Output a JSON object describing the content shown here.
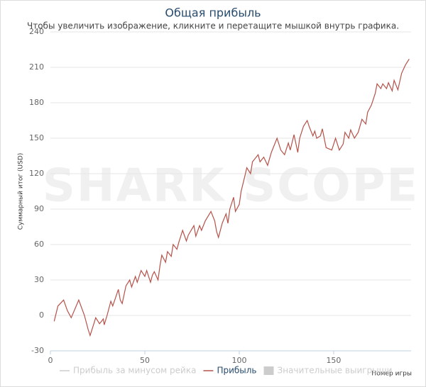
{
  "chart_data": {
    "type": "line",
    "title": "Общая прибыль",
    "subtitle": "Чтобы увеличить изображение, кликните и перетащите мышкой внутрь графика.",
    "watermark": "SHARK SCOPE",
    "ylabel": "Суммарный итог (USD)",
    "xlabel": "Номер игры",
    "x": [
      2,
      4,
      7,
      9,
      11,
      15,
      18,
      20,
      21,
      23,
      24,
      26,
      28,
      28.5,
      30,
      32,
      33,
      36,
      37,
      38,
      40,
      42,
      43,
      45,
      46,
      48,
      50,
      51,
      53,
      54,
      55,
      57,
      58,
      59,
      61,
      62,
      64,
      65,
      67,
      68,
      70,
      72,
      73,
      76,
      77,
      79,
      80,
      82,
      85,
      87,
      88,
      89,
      91,
      93,
      94,
      95,
      97,
      98,
      100,
      101,
      103,
      104,
      106,
      107,
      110,
      111,
      113,
      115,
      117,
      120,
      122,
      124,
      126,
      127,
      129,
      131,
      132,
      134,
      136,
      137,
      139,
      140,
      141,
      143,
      144,
      146,
      149,
      150,
      151,
      153,
      155,
      156,
      158,
      159,
      161,
      163,
      165,
      167,
      168,
      170,
      172,
      173,
      175,
      176,
      178,
      179,
      181,
      182,
      184,
      186,
      188,
      190
    ],
    "series": [
      {
        "name": "Прибыль",
        "color": "#b5524a",
        "values": [
          -5,
          8,
          13,
          4,
          -2,
          13,
          0,
          -12,
          -17,
          -7,
          -2,
          -7,
          -3,
          -8,
          0,
          12,
          8,
          22,
          13,
          10,
          25,
          30,
          24,
          33,
          28,
          38,
          33,
          38,
          28,
          34,
          37,
          30,
          42,
          51,
          45,
          54,
          50,
          60,
          56,
          62,
          72,
          63,
          68,
          76,
          67,
          76,
          72,
          80,
          88,
          80,
          71,
          66,
          78,
          86,
          78,
          90,
          100,
          88,
          94,
          105,
          118,
          125,
          120,
          130,
          136,
          130,
          134,
          127,
          138,
          150,
          140,
          136,
          146,
          140,
          153,
          138,
          150,
          160,
          165,
          160,
          152,
          156,
          150,
          152,
          158,
          142,
          140,
          145,
          150,
          140,
          145,
          155,
          150,
          157,
          150,
          155,
          166,
          162,
          172,
          178,
          188,
          196,
          192,
          196,
          192,
          197,
          190,
          199,
          191,
          205,
          212,
          217
        ]
      }
    ],
    "other_legend_entries": [
      {
        "name": "Прибыль за минусом рейка",
        "color": "#cccccc",
        "marker": "line"
      },
      {
        "name": "Значительные выигрыши",
        "color": "#cccccc",
        "marker": "box"
      }
    ],
    "xlim": [
      0,
      191
    ],
    "ylim": [
      -30,
      240
    ],
    "xticks": [
      0,
      50,
      100,
      150
    ],
    "yticks": [
      -30,
      0,
      30,
      60,
      90,
      120,
      150,
      180,
      210,
      240
    ],
    "grid": true
  }
}
